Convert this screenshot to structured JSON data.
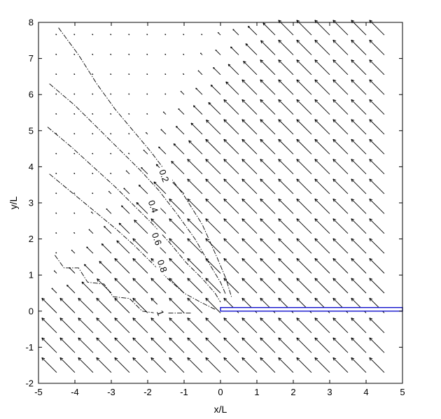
{
  "chart_data": {
    "type": "quiver-contour",
    "title": "",
    "xlabel": "x/L",
    "ylabel": "y/L",
    "xlim": [
      -5,
      5
    ],
    "ylim": [
      -2,
      8
    ],
    "xticks": [
      -5,
      -4,
      -3,
      -2,
      -1,
      0,
      1,
      2,
      3,
      4,
      5
    ],
    "yticks": [
      -2,
      -1,
      0,
      1,
      2,
      3,
      4,
      5,
      6,
      7,
      8
    ],
    "xticklabels": [
      "-5",
      "-4",
      "-3",
      "-2",
      "-1",
      "0",
      "1",
      "2",
      "3",
      "4",
      "5"
    ],
    "yticklabels": [
      "-2",
      "-1",
      "0",
      "1",
      "2",
      "3",
      "4",
      "5",
      "6",
      "7",
      "8"
    ],
    "grid": false,
    "quiver": {
      "x": [
        -4.5,
        -4.0,
        -3.5,
        -3.0,
        -2.5,
        -2.0,
        -1.5,
        -1.0,
        -0.5,
        0.0,
        0.5,
        1.0,
        1.5,
        2.0,
        2.5,
        3.0,
        3.5,
        4.0,
        4.5
      ],
      "y": [
        -1.7,
        -1.15,
        -0.6,
        -0.05,
        0.5,
        1.05,
        1.6,
        2.15,
        2.7,
        3.25,
        3.8,
        4.35,
        4.9,
        5.45,
        6.0,
        6.55,
        7.1,
        7.65
      ],
      "direction": [
        -0.7,
        0.7
      ],
      "color": "#000000"
    },
    "contours": [
      {
        "level": "0.2",
        "color": "#000000",
        "points": [
          [
            -4.45,
            7.85
          ],
          [
            -3.9,
            7.1
          ],
          [
            -3.4,
            6.3
          ],
          [
            -2.9,
            5.6
          ],
          [
            -2.4,
            5.0
          ],
          [
            -1.9,
            4.4
          ],
          [
            -1.45,
            3.8
          ],
          [
            -1.0,
            3.2
          ],
          [
            -0.5,
            2.4
          ],
          [
            -0.1,
            1.5
          ],
          [
            0.15,
            0.9
          ],
          [
            0.3,
            0.4
          ]
        ],
        "label_pos": [
          -1.55,
          3.75
        ]
      },
      {
        "level": "0.4",
        "color": "#000000",
        "points": [
          [
            -4.7,
            6.3
          ],
          [
            -4.0,
            5.7
          ],
          [
            -3.4,
            5.1
          ],
          [
            -2.8,
            4.5
          ],
          [
            -2.2,
            3.9
          ],
          [
            -1.7,
            3.35
          ],
          [
            -1.2,
            2.7
          ],
          [
            -0.7,
            2.0
          ],
          [
            -0.3,
            1.3
          ],
          [
            0.0,
            0.8
          ],
          [
            0.15,
            0.45
          ]
        ],
        "label_pos": [
          -1.85,
          2.9
        ]
      },
      {
        "level": "0.6",
        "color": "#000000",
        "points": [
          [
            -4.75,
            5.1
          ],
          [
            -4.1,
            4.55
          ],
          [
            -3.5,
            4.0
          ],
          [
            -2.9,
            3.45
          ],
          [
            -2.4,
            2.95
          ],
          [
            -1.9,
            2.45
          ],
          [
            -1.4,
            1.9
          ],
          [
            -0.95,
            1.35
          ],
          [
            -0.5,
            0.9
          ],
          [
            -0.15,
            0.5
          ],
          [
            0.0,
            0.25
          ]
        ],
        "label_pos": [
          -1.75,
          2.0
        ]
      },
      {
        "level": "0.8",
        "color": "#000000",
        "points": [
          [
            -4.7,
            3.8
          ],
          [
            -4.1,
            3.3
          ],
          [
            -3.5,
            2.8
          ],
          [
            -2.9,
            2.3
          ],
          [
            -2.4,
            1.85
          ],
          [
            -1.9,
            1.35
          ],
          [
            -1.45,
            0.9
          ],
          [
            -1.0,
            0.5
          ],
          [
            -0.55,
            0.25
          ],
          [
            -0.15,
            0.05
          ]
        ],
        "label_pos": [
          -1.6,
          1.25
        ]
      },
      {
        "level": "1",
        "color": "#000000",
        "points": [
          [
            -4.55,
            1.55
          ],
          [
            -4.3,
            1.2
          ],
          [
            -3.9,
            1.2
          ],
          [
            -3.65,
            0.8
          ],
          [
            -3.2,
            0.75
          ],
          [
            -2.95,
            0.4
          ],
          [
            -2.5,
            0.35
          ],
          [
            -2.15,
            0.0
          ],
          [
            -1.8,
            -0.05
          ],
          [
            -1.25,
            -0.05
          ],
          [
            -0.8,
            -0.05
          ]
        ],
        "label_pos": [
          -1.65,
          -0.05
        ]
      }
    ],
    "plate": {
      "x": [
        0,
        5
      ],
      "y": [
        0,
        0.1
      ],
      "color": "#1010cc"
    }
  }
}
